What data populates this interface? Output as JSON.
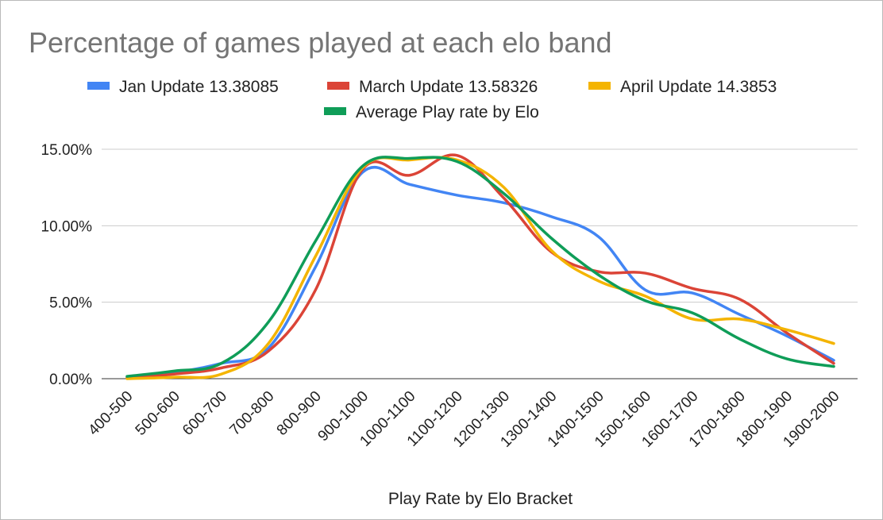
{
  "chart_data": {
    "type": "line",
    "title": "Percentage of games played at each elo band",
    "xlabel": "Play Rate by Elo Bracket",
    "ylabel": "",
    "ylim": [
      0,
      15
    ],
    "yticks": [
      {
        "value": 0,
        "label": "0.00%"
      },
      {
        "value": 5,
        "label": "5.00%"
      },
      {
        "value": 10,
        "label": "10.00%"
      },
      {
        "value": 15,
        "label": "15.00%"
      }
    ],
    "grid": true,
    "legend_position": "top",
    "categories": [
      "400-500",
      "500-600",
      "600-700",
      "700-800",
      "800-900",
      "900-1000",
      "1000-1100",
      "1100-1200",
      "1200-1300",
      "1300-1400",
      "1400-1500",
      "1500-1600",
      "1600-1700",
      "1700-1800",
      "1800-1900",
      "1900-2000"
    ],
    "series": [
      {
        "name": "Jan Update 13.38085",
        "color": "#4285f4",
        "values": [
          0.1,
          0.4,
          1.0,
          2.0,
          7.3,
          13.5,
          12.7,
          12.0,
          11.5,
          10.6,
          9.3,
          5.8,
          5.6,
          4.2,
          2.8,
          1.2
        ]
      },
      {
        "name": "March Update 13.58326",
        "color": "#db4437",
        "values": [
          0.05,
          0.3,
          0.7,
          1.8,
          5.8,
          13.7,
          13.3,
          14.6,
          11.8,
          8.3,
          7.0,
          6.9,
          5.9,
          5.2,
          3.0,
          1.0
        ]
      },
      {
        "name": "April Update 14.3853",
        "color": "#f4b400",
        "values": [
          0.0,
          0.1,
          0.3,
          2.3,
          8.0,
          13.8,
          14.3,
          14.3,
          12.5,
          8.4,
          6.4,
          5.4,
          3.9,
          3.9,
          3.2,
          2.3
        ]
      },
      {
        "name": "Average Play rate by Elo",
        "color": "#0f9d58",
        "values": [
          0.15,
          0.5,
          1.0,
          3.7,
          9.0,
          13.9,
          14.4,
          14.2,
          12.1,
          9.2,
          6.8,
          5.1,
          4.3,
          2.6,
          1.3,
          0.8
        ]
      }
    ]
  }
}
